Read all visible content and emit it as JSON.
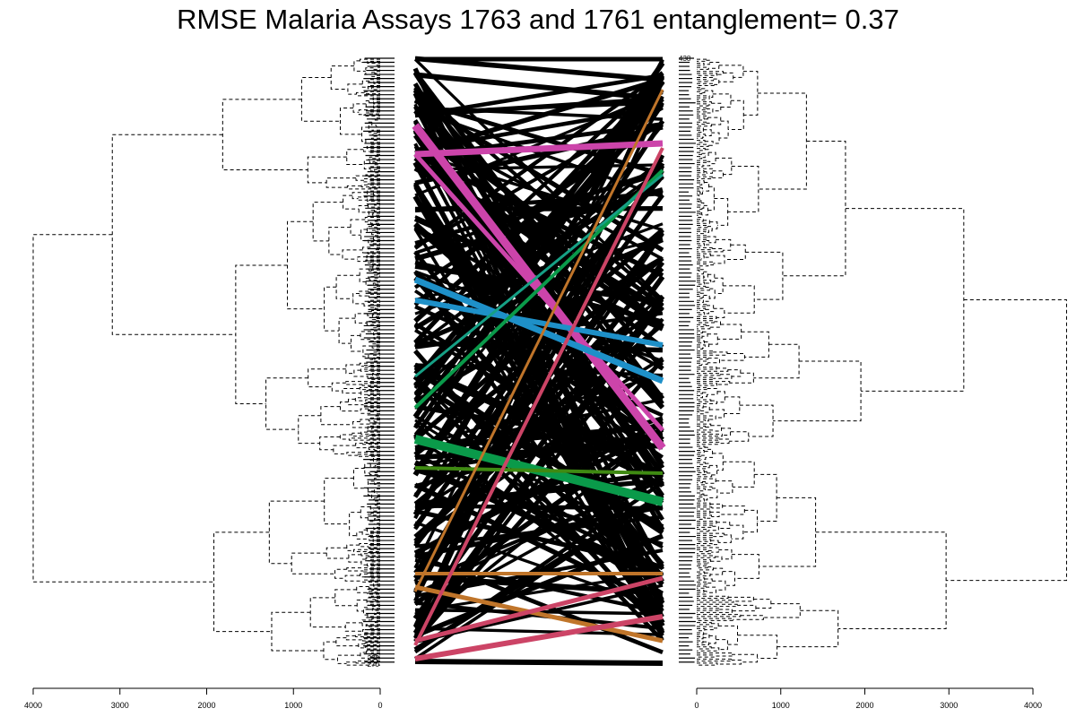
{
  "title": "RMSE Malaria Assays 1763 and 1761 entanglement= 0.37",
  "chart_data": {
    "type": "tanglegram",
    "title": "RMSE Malaria Assays 1763 and 1761 entanglement= 0.37",
    "entanglement": 0.37,
    "left_axis": {
      "ticks": [
        4000,
        3000,
        2000,
        1000,
        0
      ],
      "range": [
        4050,
        0
      ]
    },
    "right_axis": {
      "ticks": [
        0,
        1000,
        2000,
        3000,
        4000
      ],
      "range": [
        0,
        4400
      ]
    },
    "left_visible_labels": [
      "290",
      "270"
    ],
    "right_visible_labels": [
      "438"
    ],
    "leaf_count_approx": 300,
    "highlight_colors": [
      "#cc44aa",
      "#1e90c8",
      "#0a9a4a",
      "#3f8a12",
      "#16a085",
      "#c0752a",
      "#cc4466"
    ],
    "edge_color": "#000000",
    "tree_line_style": "dashed",
    "tree_root_heights": {
      "left": 4000,
      "right": 4400
    }
  }
}
